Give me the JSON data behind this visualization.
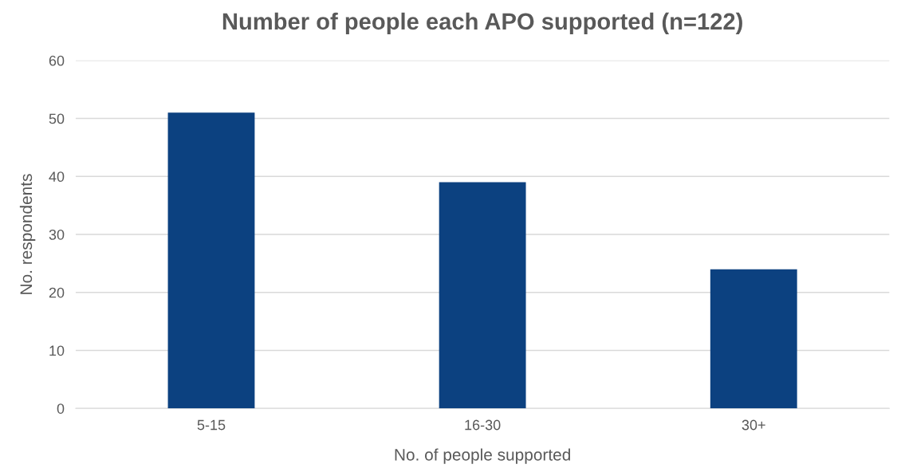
{
  "chart_data": {
    "type": "bar",
    "title": "Number of people each APO supported (n=122)",
    "xlabel": "No. of people supported",
    "ylabel": "No. respondents",
    "categories": [
      "5-15",
      "16-30",
      "30+"
    ],
    "values": [
      51,
      39,
      24
    ],
    "color": "#0c4180",
    "ylim": [
      0,
      60
    ],
    "yticks": [
      0,
      10,
      20,
      30,
      40,
      50,
      60
    ],
    "grid": "y"
  }
}
